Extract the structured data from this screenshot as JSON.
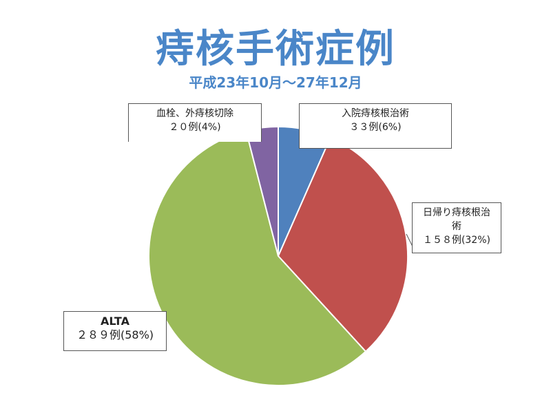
{
  "title": "痔核手術症例",
  "subtitle": "平成23年10月～27年12月",
  "chart_data": {
    "type": "pie",
    "title": "痔核手術症例",
    "subtitle": "平成23年10月～27年12月",
    "slices": [
      {
        "label": "入院痔核根治術",
        "value": 33,
        "percent_label": "33例(6%)",
        "color": "#4f81bd"
      },
      {
        "label": "日帰り痔核根治術",
        "value": 158,
        "percent_label": "158例(32%)",
        "color": "#c0504d"
      },
      {
        "label": "ALTA",
        "value": 289,
        "percent_label": "289例(58%)",
        "color": "#9bbb59"
      },
      {
        "label": "血栓、外痔核切除",
        "value": 20,
        "percent_label": "20例(4%)",
        "color": "#8064a2"
      }
    ],
    "legend": "none"
  },
  "labels": {
    "inpatient_name": "入院痔核根治術",
    "inpatient_value": "３３例(6%)",
    "dayhosp_name_1": "日帰り痔核根治",
    "dayhosp_name_2": "術",
    "dayhosp_value": "１５８例(32%)",
    "alta_name": "ALTA",
    "alta_value": "２８９例(58%)",
    "thrombus_name": "血栓、外痔核切除",
    "thrombus_value": "２０例(4%)"
  }
}
